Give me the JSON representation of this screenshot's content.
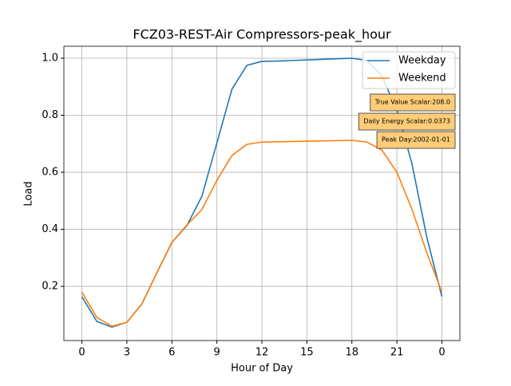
{
  "chart_data": {
    "type": "line",
    "title": "FCZ03-REST-Air Compressors-peak_hour",
    "x_label": "Hour of Day",
    "y_label": "Load",
    "x": [
      0,
      1,
      2,
      3,
      4,
      5,
      6,
      7,
      8,
      9,
      10,
      11,
      12,
      13,
      14,
      15,
      16,
      17,
      18,
      19,
      20,
      21,
      22,
      23,
      24
    ],
    "series": [
      {
        "name": "Weekday",
        "color": "#1f77b4",
        "values": [
          0.164,
          0.077,
          0.057,
          0.074,
          0.138,
          0.248,
          0.354,
          0.413,
          0.516,
          0.703,
          0.891,
          0.975,
          0.989,
          0.99,
          0.992,
          0.994,
          0.996,
          0.998,
          1.0,
          0.992,
          0.938,
          0.818,
          0.631,
          0.371,
          0.164
        ]
      },
      {
        "name": "Weekend",
        "color": "#ff7f0e",
        "values": [
          0.18,
          0.091,
          0.06,
          0.074,
          0.138,
          0.248,
          0.354,
          0.415,
          0.469,
          0.572,
          0.659,
          0.698,
          0.706,
          0.707,
          0.708,
          0.709,
          0.71,
          0.711,
          0.712,
          0.706,
          0.678,
          0.6,
          0.471,
          0.317,
          0.18
        ]
      }
    ],
    "xlim": [
      -1.2,
      25.2
    ],
    "ylim": [
      0.01,
      1.042
    ],
    "xticks": [
      0,
      3,
      6,
      9,
      12,
      15,
      18,
      21,
      {
        "value": 24,
        "label": "0"
      }
    ],
    "yticks": [
      {
        "value": 0.2,
        "label": "0.2"
      },
      {
        "value": 0.4,
        "label": "0.4"
      },
      {
        "value": 0.6,
        "label": "0.6"
      },
      {
        "value": 0.8,
        "label": "0.8"
      },
      {
        "value": 1.0,
        "label": "1.0"
      }
    ],
    "grid": true,
    "legend": "upper right",
    "annotations": [
      "True Value Scalar:208.0",
      "Daily Energy Scalar:0.0373",
      "Peak Day:2002-01-01"
    ],
    "annotation_color": "#ffcc77"
  }
}
